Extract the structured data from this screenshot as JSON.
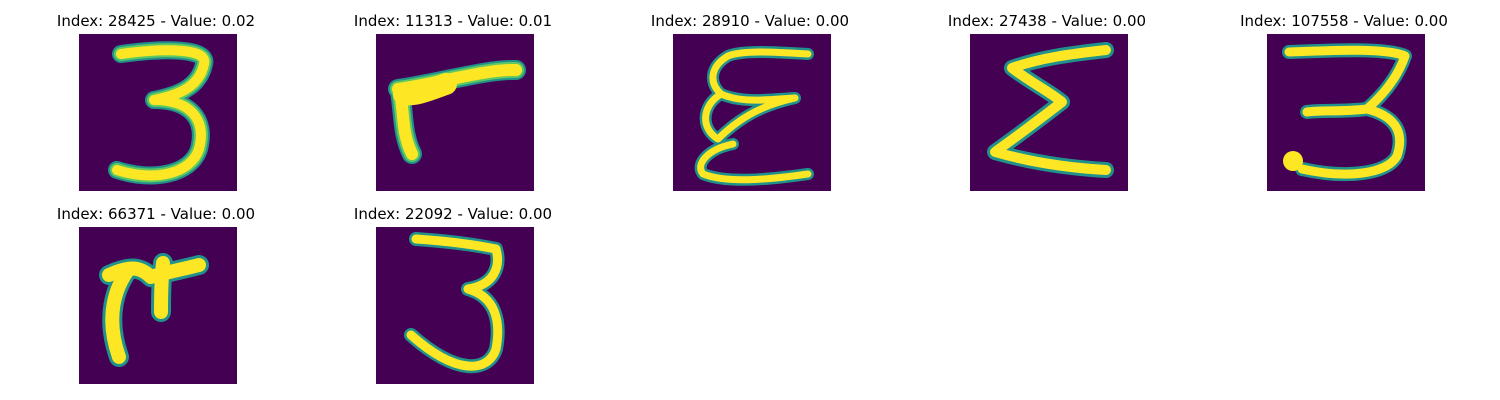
{
  "colors": {
    "background": "#440154",
    "stroke_core": "#FDE725",
    "stroke_mid": "#5EC962",
    "stroke_edge": "#21918C"
  },
  "panels": [
    {
      "title": "Index: 28425 - Value: 0.02",
      "glyph": "three-round"
    },
    {
      "title": "Index: 11313 - Value: 0.01",
      "glyph": "seven-slant"
    },
    {
      "title": "Index: 28910 - Value: 0.00",
      "glyph": "epsilon-loop"
    },
    {
      "title": "Index: 27438 - Value: 0.00",
      "glyph": "sigma-zigzag"
    },
    {
      "title": "Index: 107558 - Value: 0.00",
      "glyph": "three-flat-top"
    },
    {
      "title": "Index: 66371 - Value: 0.00",
      "glyph": "tau-hook"
    },
    {
      "title": "Index: 22092 - Value: 0.00",
      "glyph": "three-tall"
    }
  ]
}
